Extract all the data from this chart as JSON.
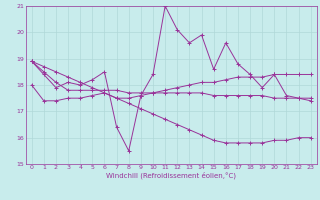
{
  "xlabel": "Windchill (Refroidissement éolien,°C)",
  "ylabel": "",
  "bg_color": "#c8ecec",
  "grid_color": "#b0d8d8",
  "line_color": "#993399",
  "xlim": [
    -0.5,
    23.5
  ],
  "ylim": [
    15,
    21
  ],
  "yticks": [
    15,
    16,
    17,
    18,
    19,
    20,
    21
  ],
  "xticks": [
    0,
    1,
    2,
    3,
    4,
    5,
    6,
    7,
    8,
    9,
    10,
    11,
    12,
    13,
    14,
    15,
    16,
    17,
    18,
    19,
    20,
    21,
    22,
    23
  ],
  "series1_x": [
    0,
    1,
    2,
    3,
    4,
    5,
    6,
    7,
    8,
    9,
    10,
    11,
    12,
    13,
    14,
    15,
    16,
    17,
    18,
    19,
    20,
    21,
    22,
    23
  ],
  "series1_y": [
    18.9,
    18.4,
    17.9,
    18.1,
    18.0,
    18.2,
    18.5,
    16.4,
    15.5,
    17.6,
    18.4,
    21.0,
    20.1,
    19.6,
    19.9,
    18.6,
    19.6,
    18.8,
    18.4,
    17.9,
    18.4,
    17.6,
    17.5,
    17.4
  ],
  "series2_x": [
    0,
    1,
    2,
    3,
    4,
    5,
    6,
    7,
    8,
    9,
    10,
    11,
    12,
    13,
    14,
    15,
    16,
    17,
    18,
    19,
    20,
    21,
    22,
    23
  ],
  "series2_y": [
    18.0,
    17.4,
    17.4,
    17.5,
    17.5,
    17.6,
    17.7,
    17.5,
    17.5,
    17.6,
    17.7,
    17.8,
    17.9,
    18.0,
    18.1,
    18.1,
    18.2,
    18.3,
    18.3,
    18.3,
    18.4,
    18.4,
    18.4,
    18.4
  ],
  "series3_x": [
    0,
    1,
    2,
    3,
    4,
    5,
    6,
    7,
    8,
    9,
    10,
    11,
    12,
    13,
    14,
    15,
    16,
    17,
    18,
    19,
    20,
    21,
    22,
    23
  ],
  "series3_y": [
    18.9,
    18.5,
    18.1,
    17.8,
    17.8,
    17.8,
    17.8,
    17.8,
    17.7,
    17.7,
    17.7,
    17.7,
    17.7,
    17.7,
    17.7,
    17.6,
    17.6,
    17.6,
    17.6,
    17.6,
    17.5,
    17.5,
    17.5,
    17.5
  ],
  "series4_x": [
    0,
    1,
    2,
    3,
    4,
    5,
    6,
    7,
    8,
    9,
    10,
    11,
    12,
    13,
    14,
    15,
    16,
    17,
    18,
    19,
    20,
    21,
    22,
    23
  ],
  "series4_y": [
    18.9,
    18.7,
    18.5,
    18.3,
    18.1,
    17.9,
    17.7,
    17.5,
    17.3,
    17.1,
    16.9,
    16.7,
    16.5,
    16.3,
    16.1,
    15.9,
    15.8,
    15.8,
    15.8,
    15.8,
    15.9,
    15.9,
    16.0,
    16.0
  ]
}
